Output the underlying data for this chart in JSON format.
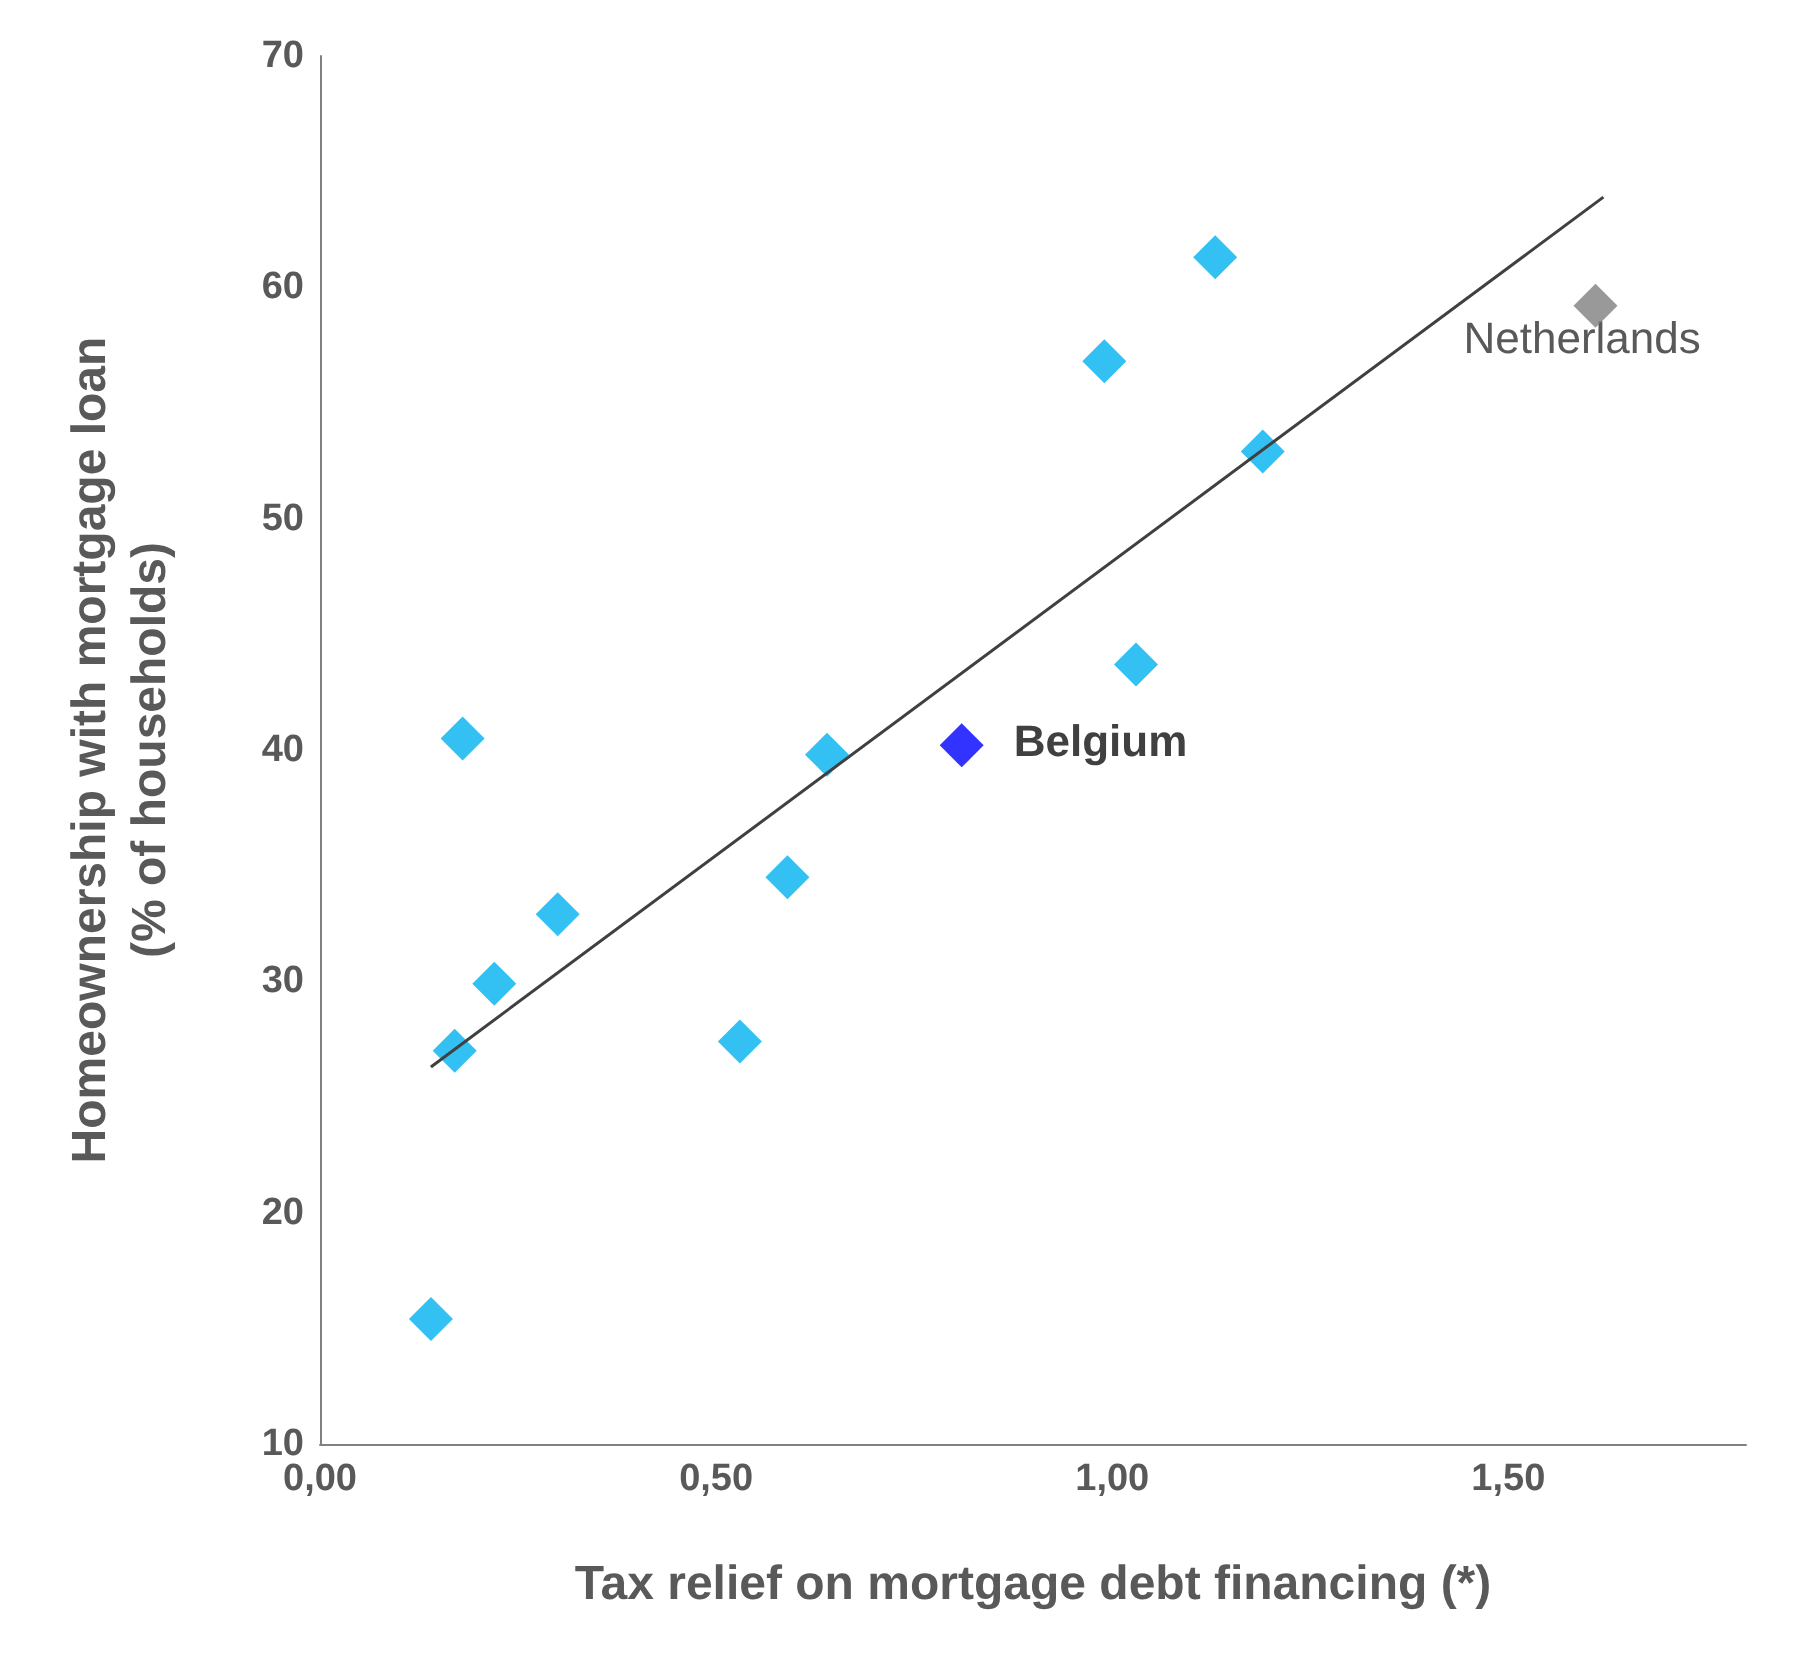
{
  "chart_data": {
    "type": "scatter",
    "xlabel": "Tax relief on mortgage debt financing (*)",
    "ylabel": "Homeownership with mortgage loan\n(% of households)",
    "xlim": [
      0,
      1.8
    ],
    "xticks": [
      {
        "value": 0,
        "label": "0,00"
      },
      {
        "value": 0.5,
        "label": "0,50"
      },
      {
        "value": 1,
        "label": "1,00"
      },
      {
        "value": 1.5,
        "label": "1,50"
      }
    ],
    "ylim": [
      10,
      70
    ],
    "yticks": [
      10,
      20,
      30,
      40,
      50,
      60,
      70
    ],
    "grid": false,
    "legend": false,
    "marker": "diamond",
    "series": [
      {
        "type": "scatter",
        "x": [
          0.14,
          0.17,
          0.18,
          0.22,
          0.3,
          0.53,
          0.59,
          0.64,
          0.81,
          0.99,
          1.03,
          1.13,
          1.19,
          1.61
        ],
        "values": [
          15.4,
          27.0,
          40.5,
          29.9,
          32.9,
          27.4,
          34.5,
          39.8,
          40.2,
          56.8,
          43.7,
          61.3,
          52.9,
          59.2
        ],
        "colors": [
          "#00b0f0",
          "#00b0f0",
          "#00b0f0",
          "#00b0f0",
          "#00b0f0",
          "#00b0f0",
          "#00b0f0",
          "#00b0f0",
          "#0000ff",
          "#00b0f0",
          "#00b0f0",
          "#00b0f0",
          "#00b0f0",
          "#808080"
        ]
      },
      {
        "type": "line",
        "x": [
          0.14,
          1.62
        ],
        "values": [
          26.3,
          63.9
        ],
        "color": "#404040",
        "marker": "none",
        "line_style": "solid"
      }
    ],
    "annotations": [
      {
        "text": "Belgium",
        "x": 0.81,
        "y": 40.2
      },
      {
        "text": "Netherlands",
        "x": 1.61,
        "y": 59.2
      }
    ]
  }
}
